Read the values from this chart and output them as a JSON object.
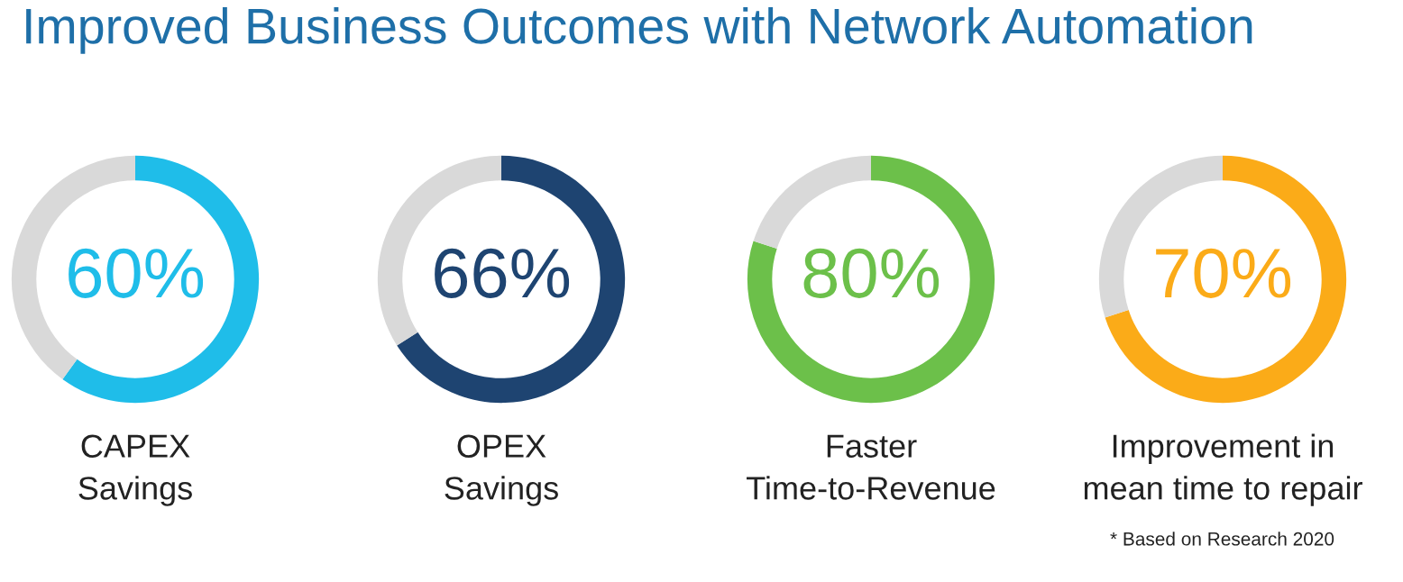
{
  "chart_data": [
    {
      "type": "donut",
      "title": "Improved Business Outcomes with Network Automation",
      "categories": [
        null,
        null
      ],
      "values": [
        60,
        40
      ],
      "colors": [
        "#1fbde9",
        "#d9d9d9"
      ],
      "value_labels": [
        "60%",
        null
      ],
      "xlabel": "CAPEX\nSavings"
    },
    {
      "type": "donut",
      "categories": [
        null,
        null
      ],
      "values": [
        66,
        34
      ],
      "colors": [
        "#1e4471",
        "#d9d9d9"
      ],
      "value_labels": [
        "66%",
        null
      ],
      "xlabel": "OPEX\nSavings"
    },
    {
      "type": "donut",
      "categories": [
        null,
        null
      ],
      "values": [
        80,
        20
      ],
      "colors": [
        "#6cc04a",
        "#d9d9d9"
      ],
      "value_labels": [
        "80%",
        null
      ],
      "xlabel": "Faster\nTime-to-Revenue"
    },
    {
      "type": "donut",
      "categories": [
        null,
        null
      ],
      "values": [
        70,
        30
      ],
      "colors": [
        "#fbab18",
        "#d9d9d9"
      ],
      "value_labels": [
        "70%",
        null
      ],
      "xlabel": "Improvement in\nmean time to repair",
      "annotations": [
        "* Based on Research 2020"
      ]
    }
  ]
}
